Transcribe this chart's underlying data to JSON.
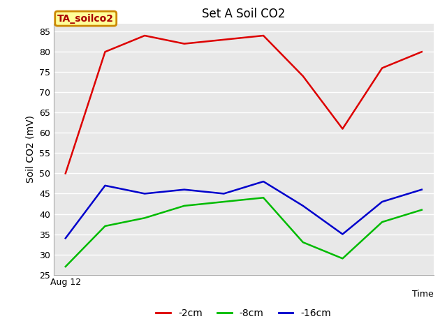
{
  "title": "Set A Soil CO2",
  "xlabel": "Time",
  "ylabel": "Soil CO2 (mV)",
  "annotation": "TA_soilco2",
  "ylim": [
    25,
    87
  ],
  "yticks": [
    25,
    30,
    35,
    40,
    45,
    50,
    55,
    60,
    65,
    70,
    75,
    80,
    85
  ],
  "x_start_label": "Aug 12",
  "series": [
    {
      "label": "-2cm",
      "color": "#dd0000",
      "y": [
        50,
        80,
        84,
        82,
        83,
        84,
        74,
        61,
        76,
        80
      ]
    },
    {
      "label": "-8cm",
      "color": "#00bb00",
      "y": [
        27,
        37,
        39,
        42,
        43,
        44,
        33,
        29,
        38,
        41
      ]
    },
    {
      "label": "-16cm",
      "color": "#0000cc",
      "y": [
        34,
        47,
        45,
        46,
        45,
        48,
        42,
        35,
        43,
        46
      ]
    }
  ],
  "fig_bg_color": "#ffffff",
  "plot_bg_color": "#e8e8e8",
  "grid_color": "#ffffff",
  "annotation_box_color": "#ffff99",
  "annotation_border_color": "#cc8800",
  "annotation_text_color": "#aa0000",
  "spine_color": "#aaaaaa",
  "title_fontsize": 12,
  "axis_label_fontsize": 10,
  "tick_fontsize": 9,
  "legend_fontsize": 10,
  "linewidth": 1.8
}
